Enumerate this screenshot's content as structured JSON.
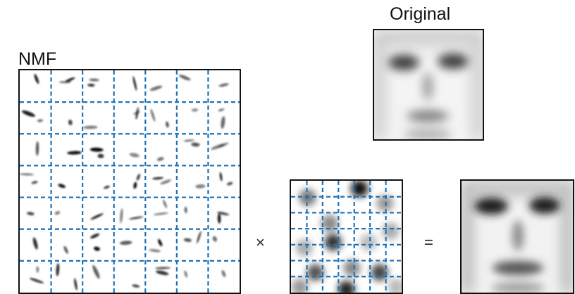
{
  "labels": {
    "original": "Original",
    "nmf": "NMF",
    "times": "×",
    "equals": "="
  },
  "colors": {
    "grid": "#1f72b4",
    "frame": "#111111",
    "stroke": "#000000"
  },
  "nmf_basis": {
    "rows": 7,
    "cols": 7
  },
  "encoding": {
    "rows": 7,
    "cols": 7
  }
}
